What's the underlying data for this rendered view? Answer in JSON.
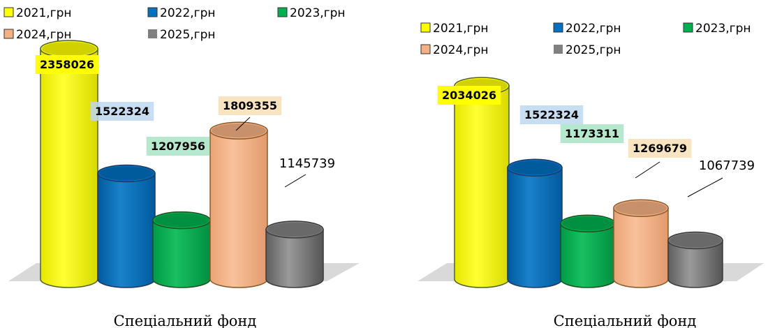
{
  "colors": {
    "2021": "#ffff00",
    "2022": "#0070c0",
    "2023": "#00b050",
    "2024": "#f4b183",
    "2025": "#808080"
  },
  "label_backgrounds": {
    "2021": "#ffff00",
    "2022": "#bdd7ee",
    "2023": "#a9e4c4",
    "2024": "#f8dfb6"
  },
  "chart_data": [
    {
      "type": "bar",
      "style": "3d-cylinder",
      "categories": [
        "2021,грн",
        "2022,грн",
        "2023,грн",
        "2024,грн",
        "2025,грн"
      ],
      "series": [
        {
          "values": [
            2358026,
            1522324,
            1207956,
            1809355,
            1145739
          ]
        }
      ],
      "data_labels": [
        "2358026",
        "1522324",
        "1207956",
        "1809355",
        "1145739"
      ],
      "legend": [
        "2021,грн",
        "2022,грн",
        "2023,грн",
        "2024,грн",
        "2025,грн"
      ],
      "legend_position": "top",
      "grid": false,
      "caption": "Спеціальний фонд"
    },
    {
      "type": "bar",
      "style": "3d-cylinder",
      "categories": [
        "2021,грн",
        "2022,грн",
        "2023,грн",
        "2024,грн",
        "2025,грн"
      ],
      "series": [
        {
          "values": [
            2034026,
            1522324,
            1173311,
            1269679,
            1067739
          ]
        }
      ],
      "data_labels": [
        "2034026",
        "1522324",
        "1173311",
        "1269679",
        "1067739"
      ],
      "legend": [
        "2021,грн",
        "2022,грн",
        "2023,грн",
        "2024,грн",
        "2025,грн"
      ],
      "legend_position": "top",
      "grid": false,
      "caption": "Спеціальний фонд"
    }
  ]
}
